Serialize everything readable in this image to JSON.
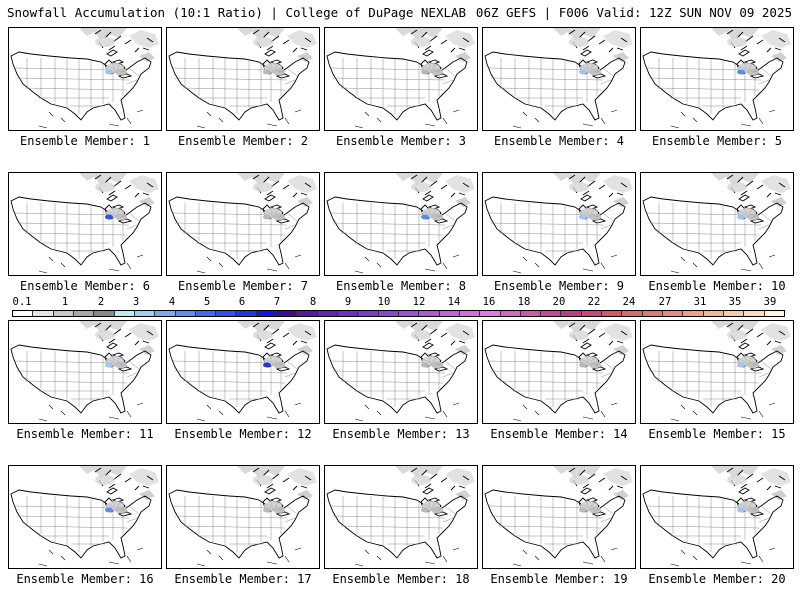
{
  "header": {
    "title_left": "Snowfall Accumulation (10:1 Ratio) | College of DuPage NEXLAB",
    "title_right": "06Z GEFS | F006 Valid: 12Z SUN NOV 09 2025"
  },
  "panels": [
    {
      "label": "Ensemble Member: 1",
      "max_snow_color": "#9ec4f2"
    },
    {
      "label": "Ensemble Member: 2",
      "max_snow_color": "#b8b8b8"
    },
    {
      "label": "Ensemble Member: 3",
      "max_snow_color": "#b8b8b8"
    },
    {
      "label": "Ensemble Member: 4",
      "max_snow_color": "#9ec4f2"
    },
    {
      "label": "Ensemble Member: 5",
      "max_snow_color": "#5a8ff0"
    },
    {
      "label": "Ensemble Member: 6",
      "max_snow_color": "#2f52e8"
    },
    {
      "label": "Ensemble Member: 7",
      "max_snow_color": "#b8b8b8"
    },
    {
      "label": "Ensemble Member: 8",
      "max_snow_color": "#5a8ff0"
    },
    {
      "label": "Ensemble Member: 9",
      "max_snow_color": "#9ec4f2"
    },
    {
      "label": "Ensemble Member: 10",
      "max_snow_color": "#9ec4f2"
    },
    {
      "label": "Ensemble Member: 11",
      "max_snow_color": "#9ec4f2"
    },
    {
      "label": "Ensemble Member: 12",
      "max_snow_color": "#1c3ad6"
    },
    {
      "label": "Ensemble Member: 13",
      "max_snow_color": "#b8b8b8"
    },
    {
      "label": "Ensemble Member: 14",
      "max_snow_color": "#b8b8b8"
    },
    {
      "label": "Ensemble Member: 15",
      "max_snow_color": "#9ec4f2"
    },
    {
      "label": "Ensemble Member: 16",
      "max_snow_color": "#5a8ff0"
    },
    {
      "label": "Ensemble Member: 17",
      "max_snow_color": "#b8b8b8"
    },
    {
      "label": "Ensemble Member: 18",
      "max_snow_color": "#b8b8b8"
    },
    {
      "label": "Ensemble Member: 19",
      "max_snow_color": "#b8b8b8"
    },
    {
      "label": "Ensemble Member: 20",
      "max_snow_color": "#9ec4f2"
    }
  ],
  "colorbar": {
    "labels": [
      "0.1",
      "1",
      "2",
      "3",
      "4",
      "5",
      "6",
      "7",
      "8",
      "9",
      "10",
      "12",
      "14",
      "16",
      "18",
      "20",
      "22",
      "24",
      "27",
      "31",
      "35",
      "39"
    ],
    "colors": [
      "#ffffff",
      "#e4e4e4",
      "#c8c8c8",
      "#a8a8a8",
      "#888888",
      "#b4f0f0",
      "#a0d0f8",
      "#78aaf0",
      "#5a8ff0",
      "#3c6ef0",
      "#2f52e8",
      "#1c3ad6",
      "#1414e6",
      "#3c0a96",
      "#4e1aa6",
      "#5a28b0",
      "#6a32be",
      "#7a3cca",
      "#8a46d4",
      "#9c50dc",
      "#b05ad2",
      "#c064d8",
      "#d070dc",
      "#de7ae0",
      "#d868c6",
      "#d058b0",
      "#c8489a",
      "#c03a86",
      "#c84a78",
      "#d05a6e",
      "#d86a6a",
      "#e07a70",
      "#e88c7a",
      "#f0a088",
      "#f4b698",
      "#f8caaa",
      "#fcdcc0",
      "#fff0e0"
    ]
  }
}
